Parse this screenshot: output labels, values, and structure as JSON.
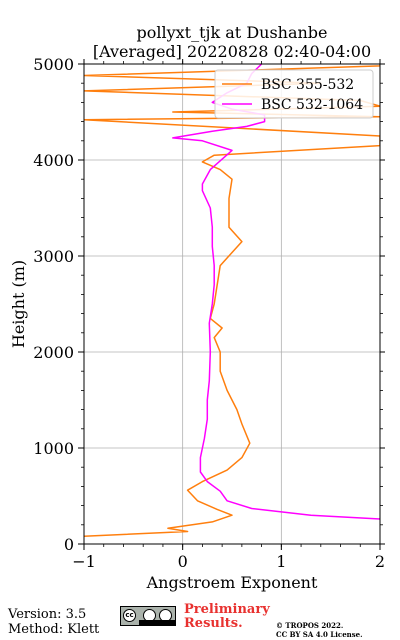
{
  "chart_data": {
    "type": "line",
    "title_line1": "pollyxt_tjk at Dushanbe",
    "title_line2": "[Averaged] 20220828 02:40-04:00",
    "xlabel": "Angstroem Exponent",
    "ylabel": "Height (m)",
    "xlim": [
      -1,
      2
    ],
    "ylim": [
      0,
      5000
    ],
    "x_ticks": [
      -1,
      0,
      1,
      2
    ],
    "y_ticks": [
      0,
      1000,
      2000,
      3000,
      4000,
      5000
    ],
    "grid": true,
    "legend_position": "top-right",
    "series": [
      {
        "name": "BSC 355-532",
        "color": "#ff7f0e",
        "points": [
          [
            -1.0,
            80
          ],
          [
            0.05,
            130
          ],
          [
            -0.15,
            165
          ],
          [
            0.3,
            230
          ],
          [
            0.5,
            300
          ],
          [
            0.35,
            360
          ],
          [
            0.15,
            450
          ],
          [
            0.05,
            560
          ],
          [
            0.2,
            650
          ],
          [
            0.45,
            770
          ],
          [
            0.6,
            900
          ],
          [
            0.68,
            1050
          ],
          [
            0.6,
            1250
          ],
          [
            0.55,
            1400
          ],
          [
            0.45,
            1600
          ],
          [
            0.38,
            1800
          ],
          [
            0.38,
            2000
          ],
          [
            0.32,
            2150
          ],
          [
            0.4,
            2250
          ],
          [
            0.28,
            2350
          ],
          [
            0.32,
            2500
          ],
          [
            0.35,
            2700
          ],
          [
            0.38,
            2900
          ],
          [
            0.6,
            3150
          ],
          [
            0.47,
            3300
          ],
          [
            0.47,
            3600
          ],
          [
            0.5,
            3800
          ],
          [
            0.38,
            3900
          ],
          [
            0.2,
            3980
          ],
          [
            0.32,
            4050
          ],
          [
            2.0,
            4150
          ],
          [
            2.0,
            4250
          ],
          [
            -1.0,
            4420
          ],
          [
            2.0,
            4450
          ],
          [
            -0.1,
            4500
          ],
          [
            2.0,
            4560
          ],
          [
            1.8,
            4620
          ],
          [
            -1.0,
            4720
          ],
          [
            1.4,
            4800
          ],
          [
            -1.0,
            4880
          ],
          [
            2.0,
            4980
          ],
          [
            2.0,
            5000
          ]
        ]
      },
      {
        "name": "BSC 532-1064",
        "color": "#ff00ff",
        "points": [
          [
            2.0,
            260
          ],
          [
            1.3,
            300
          ],
          [
            0.7,
            370
          ],
          [
            0.45,
            450
          ],
          [
            0.38,
            550
          ],
          [
            0.25,
            650
          ],
          [
            0.18,
            750
          ],
          [
            0.18,
            900
          ],
          [
            0.22,
            1100
          ],
          [
            0.25,
            1300
          ],
          [
            0.25,
            1500
          ],
          [
            0.27,
            1700
          ],
          [
            0.28,
            2000
          ],
          [
            0.27,
            2300
          ],
          [
            0.3,
            2500
          ],
          [
            0.32,
            2700
          ],
          [
            0.32,
            2900
          ],
          [
            0.3,
            3100
          ],
          [
            0.3,
            3300
          ],
          [
            0.28,
            3500
          ],
          [
            0.2,
            3680
          ],
          [
            0.2,
            3750
          ],
          [
            0.28,
            3900
          ],
          [
            0.5,
            4100
          ],
          [
            0.2,
            4200
          ],
          [
            -0.1,
            4230
          ],
          [
            0.3,
            4300
          ],
          [
            0.65,
            4350
          ],
          [
            0.83,
            4400
          ],
          [
            0.83,
            4470
          ],
          [
            0.5,
            4530
          ],
          [
            0.3,
            4600
          ],
          [
            0.45,
            4700
          ],
          [
            0.65,
            4800
          ],
          [
            0.7,
            4900
          ],
          [
            0.8,
            5000
          ]
        ]
      }
    ]
  },
  "footer": {
    "version": "Version: 3.5",
    "method": "Method: Klett",
    "preliminary_line1": "Preliminary",
    "preliminary_line2": "Results.",
    "copyright_line1": "© TROPOS 2022.",
    "copyright_line2": "CC BY SA 4.0 License.",
    "license_badge_text": "cc"
  }
}
